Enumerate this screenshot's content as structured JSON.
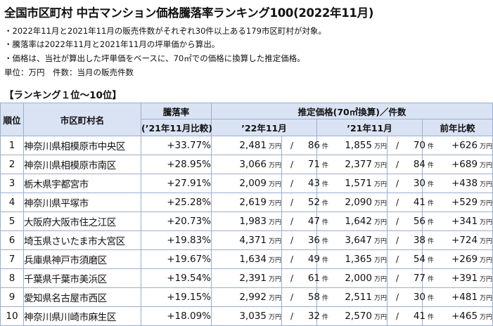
{
  "title": "全国市区町村 中古マンション価格騰落率ランキング100(2022年11月)",
  "notes": [
    "・2022年11月と2021年11月の販売件数がそれぞれ30件以上ある179市区町村が対象。",
    "・騰落率は2022年11月と2021年11月の坪単価から算出。",
    "・価格は、当社が算出した坪単価をベースに、70㎡での価格に換算した推定価格。",
    "単位：万円　件数：当月の販売件数"
  ],
  "section_title": "【ランキング１位～10位】",
  "headers": {
    "rank": "順位",
    "city": "市区町村名",
    "rate": "騰落率",
    "rate_sub": "(’21年11月比較)",
    "price_group": "推定価格(70㎡換算)／件数",
    "y22": "’22年11月",
    "y21": "’21年11月",
    "yoy": "前年比較"
  },
  "units": {
    "price": "万円",
    "count": "件",
    "slash": "/"
  },
  "rows": [
    {
      "rank": "1",
      "city": "神奈川県相模原市中央区",
      "rate": "+33.77%",
      "p22": "2,481",
      "c22": "86",
      "p21": "1,855",
      "c21": "70",
      "diff": "+626"
    },
    {
      "rank": "2",
      "city": "神奈川県相模原市南区",
      "rate": "+28.95%",
      "p22": "3,066",
      "c22": "71",
      "p21": "2,377",
      "c21": "84",
      "diff": "+689"
    },
    {
      "rank": "3",
      "city": "栃木県宇都宮市",
      "rate": "+27.91%",
      "p22": "2,009",
      "c22": "43",
      "p21": "1,571",
      "c21": "30",
      "diff": "+438"
    },
    {
      "rank": "4",
      "city": "神奈川県平塚市",
      "rate": "+25.28%",
      "p22": "2,619",
      "c22": "52",
      "p21": "2,090",
      "c21": "41",
      "diff": "+529"
    },
    {
      "rank": "5",
      "city": "大阪府大阪市住之江区",
      "rate": "+20.73%",
      "p22": "1,983",
      "c22": "47",
      "p21": "1,642",
      "c21": "56",
      "diff": "+341"
    },
    {
      "rank": "6",
      "city": "埼玉県さいたま市大宮区",
      "rate": "+19.83%",
      "p22": "4,371",
      "c22": "36",
      "p21": "3,647",
      "c21": "38",
      "diff": "+724"
    },
    {
      "rank": "7",
      "city": "兵庫県神戸市須磨区",
      "rate": "+19.67%",
      "p22": "1,634",
      "c22": "49",
      "p21": "1,365",
      "c21": "54",
      "diff": "+269"
    },
    {
      "rank": "8",
      "city": "千葉県千葉市美浜区",
      "rate": "+19.54%",
      "p22": "2,391",
      "c22": "61",
      "p21": "2,000",
      "c21": "77",
      "diff": "+391"
    },
    {
      "rank": "9",
      "city": "愛知県名古屋市西区",
      "rate": "+19.15%",
      "p22": "2,992",
      "c22": "58",
      "p21": "2,511",
      "c21": "30",
      "diff": "+481"
    },
    {
      "rank": "10",
      "city": "神奈川県川崎市麻生区",
      "rate": "+18.09%",
      "p22": "3,035",
      "c22": "32",
      "p21": "2,570",
      "c21": "41",
      "diff": "+465"
    }
  ]
}
